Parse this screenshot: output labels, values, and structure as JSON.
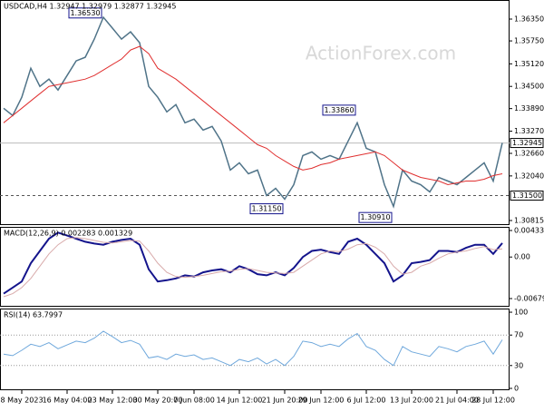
{
  "chart_data": [
    {
      "type": "line",
      "title": "USDCAD,H4 1.32947 1.32979 1.32877 1.32945",
      "watermark": "ActionForex.com",
      "x": [
        0,
        1,
        2,
        3,
        4,
        5,
        6,
        7,
        8,
        9,
        10,
        11,
        12,
        13,
        14,
        15,
        16,
        17,
        18,
        19,
        20,
        21,
        22,
        23,
        24,
        25,
        26,
        27,
        28,
        29,
        30,
        31,
        32,
        33,
        34,
        35,
        36,
        37,
        38,
        39,
        40,
        41,
        42,
        43,
        44,
        45,
        46,
        47,
        48,
        49,
        50,
        51,
        52,
        53,
        54,
        55
      ],
      "xlim": [
        -0.4,
        55.8
      ],
      "ylim": [
        1.3069,
        1.36874
      ],
      "yticks": [
        {
          "value": 1.3635,
          "label": "1.36350"
        },
        {
          "value": 1.3575,
          "label": "1.35750"
        },
        {
          "value": 1.3512,
          "label": "1.35120"
        },
        {
          "value": 1.345,
          "label": "1.34500"
        },
        {
          "value": 1.3389,
          "label": "1.33890"
        },
        {
          "value": 1.3327,
          "label": "1.33270"
        },
        {
          "value": 1.3266,
          "label": "1.32660"
        },
        {
          "value": 1.3204,
          "label": "1.32040"
        },
        {
          "value": 1.30815,
          "label": "1.30815"
        }
      ],
      "series": [
        {
          "name": "USDCAD",
          "color": "#4f7388",
          "width": 1.5,
          "values": [
            1.339,
            1.337,
            1.342,
            1.35,
            1.345,
            1.347,
            1.344,
            1.348,
            1.352,
            1.353,
            1.358,
            1.364,
            1.361,
            1.358,
            1.36,
            1.357,
            1.345,
            1.342,
            1.338,
            1.34,
            1.335,
            1.336,
            1.333,
            1.334,
            1.33,
            1.322,
            1.324,
            1.321,
            1.322,
            1.315,
            1.317,
            1.314,
            1.318,
            1.326,
            1.327,
            1.325,
            1.326,
            1.325,
            1.33,
            1.335,
            1.328,
            1.327,
            1.318,
            1.312,
            1.322,
            1.319,
            1.318,
            1.316,
            1.32,
            1.319,
            1.318,
            1.32,
            1.322,
            1.324,
            1.319,
            1.3295
          ]
        },
        {
          "name": "MA",
          "color": "#e03030",
          "width": 1,
          "values": [
            1.335,
            1.337,
            1.339,
            1.341,
            1.343,
            1.345,
            1.3455,
            1.346,
            1.3465,
            1.347,
            1.348,
            1.3495,
            1.351,
            1.3525,
            1.355,
            1.356,
            1.354,
            1.35,
            1.3485,
            1.347,
            1.345,
            1.343,
            1.341,
            1.339,
            1.337,
            1.335,
            1.333,
            1.331,
            1.329,
            1.328,
            1.326,
            1.3245,
            1.323,
            1.322,
            1.3225,
            1.3235,
            1.324,
            1.325,
            1.3255,
            1.326,
            1.3265,
            1.327,
            1.326,
            1.324,
            1.322,
            1.321,
            1.32,
            1.3195,
            1.319,
            1.318,
            1.3185,
            1.319,
            1.319,
            1.3195,
            1.3205,
            1.321
          ]
        }
      ],
      "hlines": [
        {
          "value": 1.315,
          "label": "1.31500",
          "style": "dashed"
        },
        {
          "value": 1.32945,
          "label": "1.32945",
          "style": "solid"
        }
      ],
      "annotations": [
        {
          "text": "1.36530",
          "x": 11,
          "y": 1.3653,
          "position": "left"
        },
        {
          "text": "1.33860",
          "x": 39,
          "y": 1.3386,
          "position": "left"
        },
        {
          "text": "1.31150",
          "x": 31,
          "y": 1.3115,
          "position": "left"
        },
        {
          "text": "1.30910",
          "x": 43,
          "y": 1.3091,
          "position": "left"
        }
      ]
    },
    {
      "type": "line",
      "title": "MACD(12,26,9) 0.002283 0.001329",
      "x": [
        0,
        1,
        2,
        3,
        4,
        5,
        6,
        7,
        8,
        9,
        10,
        11,
        12,
        13,
        14,
        15,
        16,
        17,
        18,
        19,
        20,
        21,
        22,
        23,
        24,
        25,
        26,
        27,
        28,
        29,
        30,
        31,
        32,
        33,
        34,
        35,
        36,
        37,
        38,
        39,
        40,
        41,
        42,
        43,
        44,
        45,
        46,
        47,
        48,
        49,
        50,
        51,
        52,
        53,
        54,
        55
      ],
      "xlim": [
        -0.4,
        55.8
      ],
      "ylim": [
        -0.00813,
        0.00493
      ],
      "yticks": [
        0.004335,
        {
          "value": 0,
          "label": "0.00"
        },
        -0.006795
      ],
      "series": [
        {
          "name": "MACD",
          "color": "#14148c",
          "width": 2,
          "values": [
            -0.006,
            -0.005,
            -0.004,
            -0.001,
            0.001,
            0.003,
            0.004,
            0.0035,
            0.003,
            0.0025,
            0.0022,
            0.002,
            0.0025,
            0.0028,
            0.003,
            0.002,
            -0.002,
            -0.004,
            -0.0038,
            -0.0035,
            -0.003,
            -0.0032,
            -0.0025,
            -0.0022,
            -0.002,
            -0.0025,
            -0.0015,
            -0.002,
            -0.0028,
            -0.003,
            -0.0025,
            -0.003,
            -0.0018,
            0.0,
            0.001,
            0.0012,
            0.0008,
            0.0005,
            0.0025,
            0.003,
            0.002,
            0.0005,
            -0.001,
            -0.004,
            -0.003,
            -0.001,
            -0.0008,
            -0.0005,
            0.001,
            0.001,
            0.0008,
            0.0015,
            0.002,
            0.002,
            0.0005,
            0.00228
          ]
        },
        {
          "name": "Signal",
          "color": "#d8aaaa",
          "width": 1,
          "values": [
            -0.0065,
            -0.006,
            -0.005,
            -0.0035,
            -0.0015,
            0.0005,
            0.002,
            0.003,
            0.0032,
            0.003,
            0.0027,
            0.0024,
            0.0023,
            0.0025,
            0.0027,
            0.0026,
            0.001,
            -0.001,
            -0.0025,
            -0.0032,
            -0.0033,
            -0.0032,
            -0.003,
            -0.0027,
            -0.0024,
            -0.0023,
            -0.002,
            -0.0019,
            -0.0022,
            -0.0025,
            -0.0026,
            -0.0027,
            -0.0025,
            -0.0015,
            -0.0005,
            0.0005,
            0.001,
            0.0009,
            0.0013,
            0.002,
            0.0022,
            0.0016,
            0.0005,
            -0.0015,
            -0.0028,
            -0.0025,
            -0.0015,
            -0.001,
            -0.0002,
            0.0005,
            0.0008,
            0.001,
            0.0014,
            0.0017,
            0.0012,
            0.00133
          ]
        }
      ]
    },
    {
      "type": "line",
      "title": "RSI(14) 63.7997",
      "x": [
        0,
        1,
        2,
        3,
        4,
        5,
        6,
        7,
        8,
        9,
        10,
        11,
        12,
        13,
        14,
        15,
        16,
        17,
        18,
        19,
        20,
        21,
        22,
        23,
        24,
        25,
        26,
        27,
        28,
        29,
        30,
        31,
        32,
        33,
        34,
        35,
        36,
        37,
        38,
        39,
        40,
        41,
        42,
        43,
        44,
        45,
        46,
        47,
        48,
        49,
        50,
        51,
        52,
        53,
        54,
        55
      ],
      "xlim": [
        -0.4,
        55.8
      ],
      "ylim": [
        -2.4,
        104.8
      ],
      "yticks": [
        100,
        70,
        30,
        0
      ],
      "xticks": [
        {
          "value": 2,
          "label": "8 May 2023"
        },
        {
          "value": 7,
          "label": "16 May 04:00"
        },
        {
          "value": 12,
          "label": "23 May 12:00"
        },
        {
          "value": 17,
          "label": "30 May 20:00"
        },
        {
          "value": 21,
          "label": "7 Jun 08:00"
        },
        {
          "value": 26,
          "label": "14 Jun 12:00"
        },
        {
          "value": 31,
          "label": "21 Jun 20:00"
        },
        {
          "value": 35,
          "label": "29 Jun 12:00"
        },
        {
          "value": 40,
          "label": "6 Jul 12:00"
        },
        {
          "value": 45,
          "label": "13 Jul 20:00"
        },
        {
          "value": 50,
          "label": "21 Jul 04:00"
        },
        {
          "value": 54,
          "label": "28 Jul 12:00"
        }
      ],
      "series": [
        {
          "name": "RSI",
          "color": "#6fa8dc",
          "width": 1,
          "values": [
            45,
            43,
            50,
            58,
            55,
            60,
            52,
            57,
            62,
            60,
            66,
            75,
            68,
            60,
            63,
            58,
            40,
            42,
            38,
            45,
            42,
            44,
            38,
            40,
            35,
            30,
            38,
            35,
            40,
            32,
            38,
            30,
            42,
            62,
            60,
            55,
            58,
            55,
            65,
            72,
            55,
            50,
            38,
            30,
            55,
            48,
            45,
            42,
            55,
            52,
            48,
            55,
            58,
            62,
            45,
            63.8
          ]
        }
      ],
      "hlines": [
        {
          "value": 70,
          "style": "dotted"
        },
        {
          "value": 30,
          "style": "dotted"
        }
      ]
    }
  ]
}
